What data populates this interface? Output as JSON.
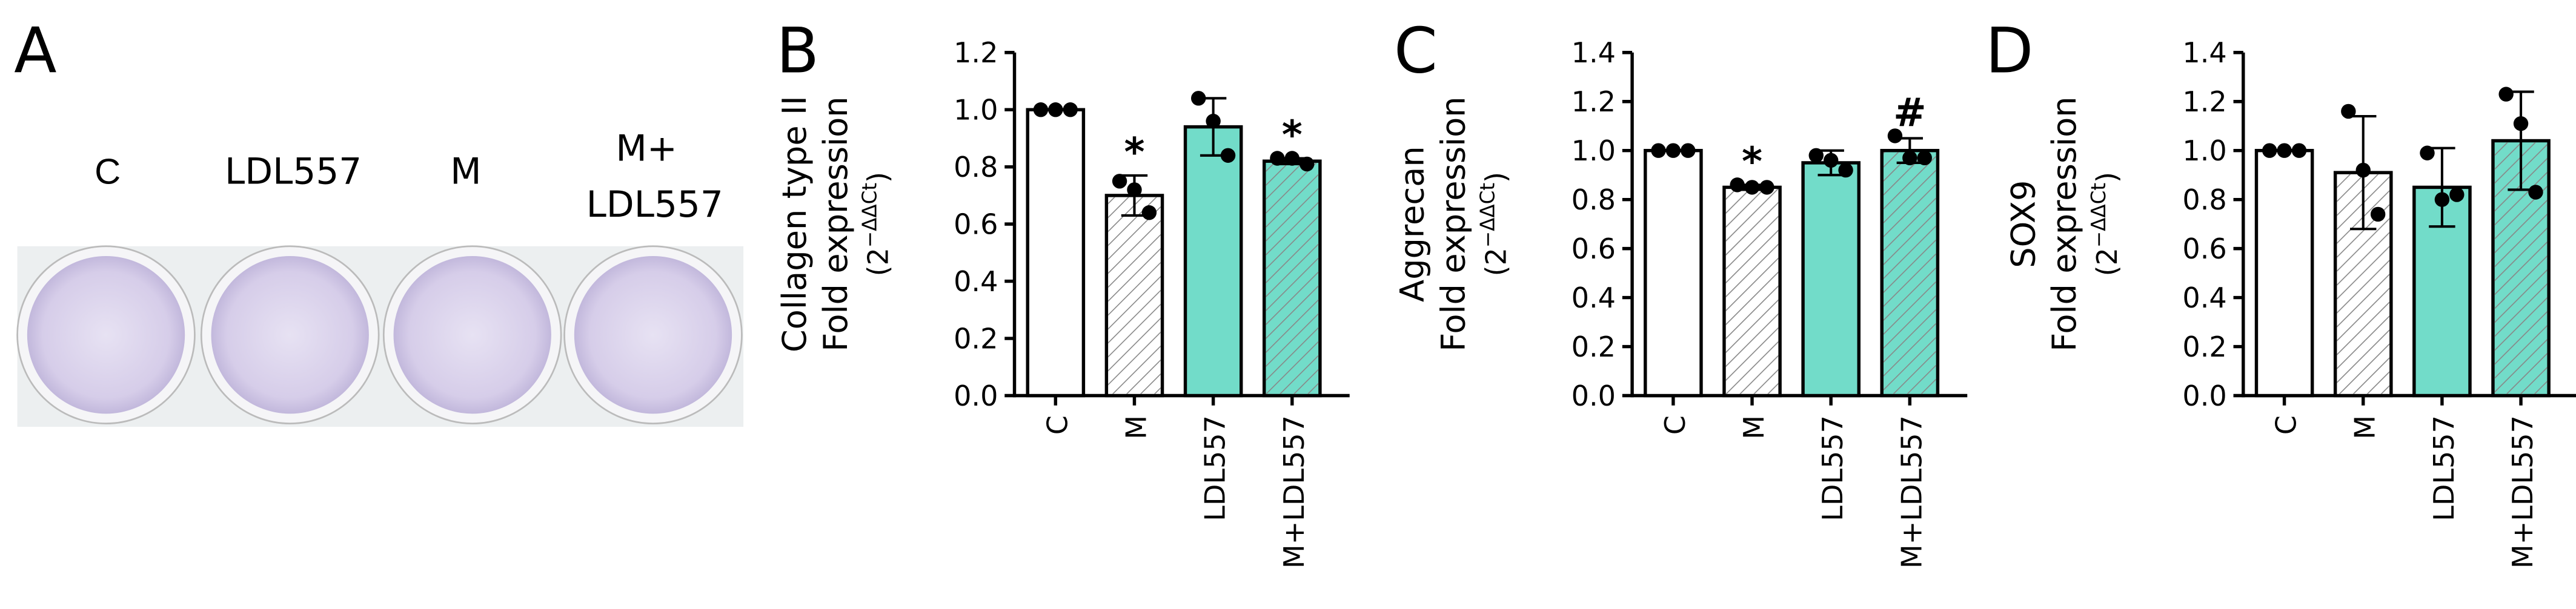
{
  "panel_a": {
    "label": "A",
    "wells": [
      "C",
      "LDL557",
      "M"
    ],
    "last_well": [
      "M+",
      "LDL557"
    ]
  },
  "chart_data": [
    {
      "type": "bar",
      "panel_label": "B",
      "y_label_lines": [
        "Collagen type II",
        "Fold expression"
      ],
      "y_label_unit": {
        "open": "(2",
        "exponent": "−ΔΔCt",
        "close": ")"
      },
      "categories": [
        "C",
        "M",
        "LDL557",
        "M+LDL557"
      ],
      "values": [
        1.0,
        0.7,
        0.94,
        0.82
      ],
      "errors": [
        0.0,
        0.07,
        0.1,
        0.01
      ],
      "points": [
        [
          1.0,
          1.0,
          1.0
        ],
        [
          0.75,
          0.72,
          0.64
        ],
        [
          1.04,
          0.96,
          0.84
        ],
        [
          0.83,
          0.83,
          0.81
        ]
      ],
      "annotations": [
        null,
        "*",
        null,
        "*"
      ],
      "colors": [
        "#ffffff",
        "#ffffff",
        "#72dcc9",
        "#72dcc9"
      ],
      "hatched": [
        false,
        true,
        false,
        true
      ],
      "ylim": [
        0,
        1.2
      ],
      "yticks": [
        {
          "value": 0,
          "label": "0.0"
        },
        {
          "value": 0.2,
          "label": "0.2"
        },
        {
          "value": 0.4,
          "label": "0.4"
        },
        {
          "value": 0.6,
          "label": "0.6"
        },
        {
          "value": 0.8,
          "label": "0.8"
        },
        {
          "value": 1.0,
          "label": "1.0"
        },
        {
          "value": 1.2,
          "label": "1.2"
        }
      ]
    },
    {
      "type": "bar",
      "panel_label": "C",
      "y_label_lines": [
        "Aggrecan",
        "Fold expression"
      ],
      "y_label_unit": {
        "open": "(2",
        "exponent": "−ΔΔCt",
        "close": ")"
      },
      "categories": [
        "C",
        "M",
        "LDL557",
        "M+LDL557"
      ],
      "values": [
        1.0,
        0.85,
        0.95,
        1.0
      ],
      "errors": [
        0.0,
        0.01,
        0.05,
        0.05
      ],
      "points": [
        [
          1.0,
          1.0,
          1.0
        ],
        [
          0.86,
          0.85,
          0.85
        ],
        [
          0.98,
          0.96,
          0.92
        ],
        [
          1.06,
          0.97,
          0.97
        ]
      ],
      "annotations": [
        null,
        "*",
        null,
        "#"
      ],
      "colors": [
        "#ffffff",
        "#ffffff",
        "#72dcc9",
        "#72dcc9"
      ],
      "hatched": [
        false,
        true,
        false,
        true
      ],
      "ylim": [
        0,
        1.4
      ],
      "yticks": [
        {
          "value": 0,
          "label": "0.0"
        },
        {
          "value": 0.2,
          "label": "0.2"
        },
        {
          "value": 0.4,
          "label": "0.4"
        },
        {
          "value": 0.6,
          "label": "0.6"
        },
        {
          "value": 0.8,
          "label": "0.8"
        },
        {
          "value": 1.0,
          "label": "1.0"
        },
        {
          "value": 1.2,
          "label": "1.2"
        },
        {
          "value": 1.4,
          "label": "1.4"
        }
      ]
    },
    {
      "type": "bar",
      "panel_label": "D",
      "y_label_lines": [
        "SOX9",
        "Fold expression"
      ],
      "y_label_unit": {
        "open": "(2",
        "exponent": "−ΔΔCt",
        "close": ")"
      },
      "categories": [
        "C",
        "M",
        "LDL557",
        "M+LDL557"
      ],
      "values": [
        1.0,
        0.91,
        0.85,
        1.04
      ],
      "errors": [
        0.0,
        0.23,
        0.16,
        0.2
      ],
      "points": [
        [
          1.0,
          1.0,
          1.0
        ],
        [
          1.16,
          0.92,
          0.74
        ],
        [
          0.99,
          0.8,
          0.82
        ],
        [
          1.23,
          1.11,
          0.83
        ]
      ],
      "annotations": [
        null,
        null,
        null,
        null
      ],
      "colors": [
        "#ffffff",
        "#ffffff",
        "#72dcc9",
        "#72dcc9"
      ],
      "hatched": [
        false,
        true,
        false,
        true
      ],
      "ylim": [
        0,
        1.4
      ],
      "yticks": [
        {
          "value": 0,
          "label": "0.0"
        },
        {
          "value": 0.2,
          "label": "0.2"
        },
        {
          "value": 0.4,
          "label": "0.4"
        },
        {
          "value": 0.6,
          "label": "0.6"
        },
        {
          "value": 0.8,
          "label": "0.8"
        },
        {
          "value": 1.0,
          "label": "1.0"
        },
        {
          "value": 1.2,
          "label": "1.2"
        },
        {
          "value": 1.4,
          "label": "1.4"
        }
      ]
    }
  ]
}
